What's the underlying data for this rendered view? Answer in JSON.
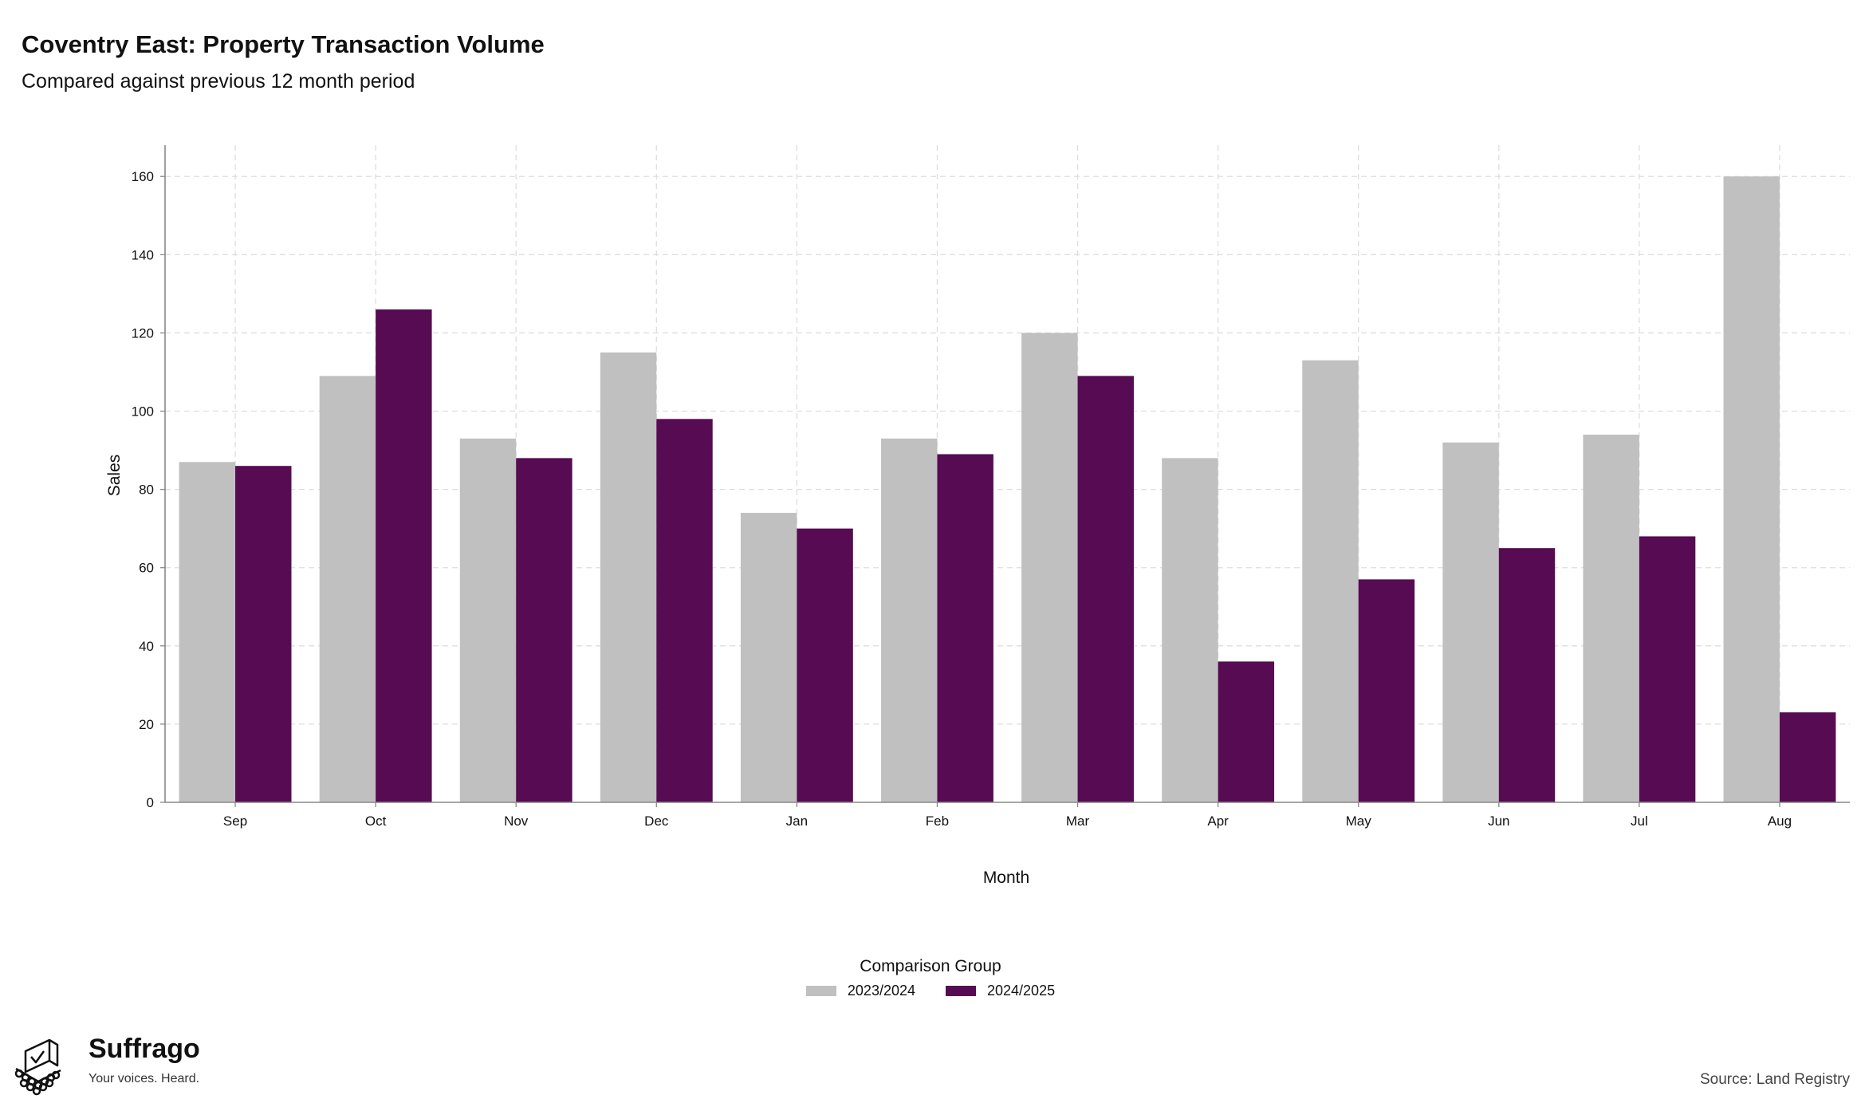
{
  "header": {
    "title": "Coventry East: Property Transaction Volume",
    "subtitle": "Compared against previous 12 month period"
  },
  "colors": {
    "series_a": "#c0c0c0",
    "series_b": "#560b52",
    "grid": "#dedede",
    "axis": "#888888"
  },
  "chart_data": {
    "type": "bar",
    "title": "Coventry East: Property Transaction Volume",
    "subtitle": "Compared against previous 12 month period",
    "xlabel": "Month",
    "ylabel": "Sales",
    "categories": [
      "Sep",
      "Oct",
      "Nov",
      "Dec",
      "Jan",
      "Feb",
      "Mar",
      "Apr",
      "May",
      "Jun",
      "Jul",
      "Aug"
    ],
    "series": [
      {
        "name": "2023/2024",
        "values": [
          87,
          109,
          93,
          115,
          74,
          93,
          120,
          88,
          113,
          92,
          94,
          160
        ]
      },
      {
        "name": "2024/2025",
        "values": [
          86,
          126,
          88,
          98,
          70,
          89,
          109,
          36,
          57,
          65,
          68,
          23
        ]
      }
    ],
    "ylim": [
      0,
      168
    ],
    "yticks": [
      0,
      20,
      40,
      60,
      80,
      100,
      120,
      140,
      160
    ],
    "grid": true,
    "legend": {
      "title": "Comparison Group",
      "position": "bottom"
    }
  },
  "footer": {
    "logo_name": "Suffrago",
    "logo_tagline": "Your voices. Heard.",
    "source": "Source: Land Registry"
  }
}
